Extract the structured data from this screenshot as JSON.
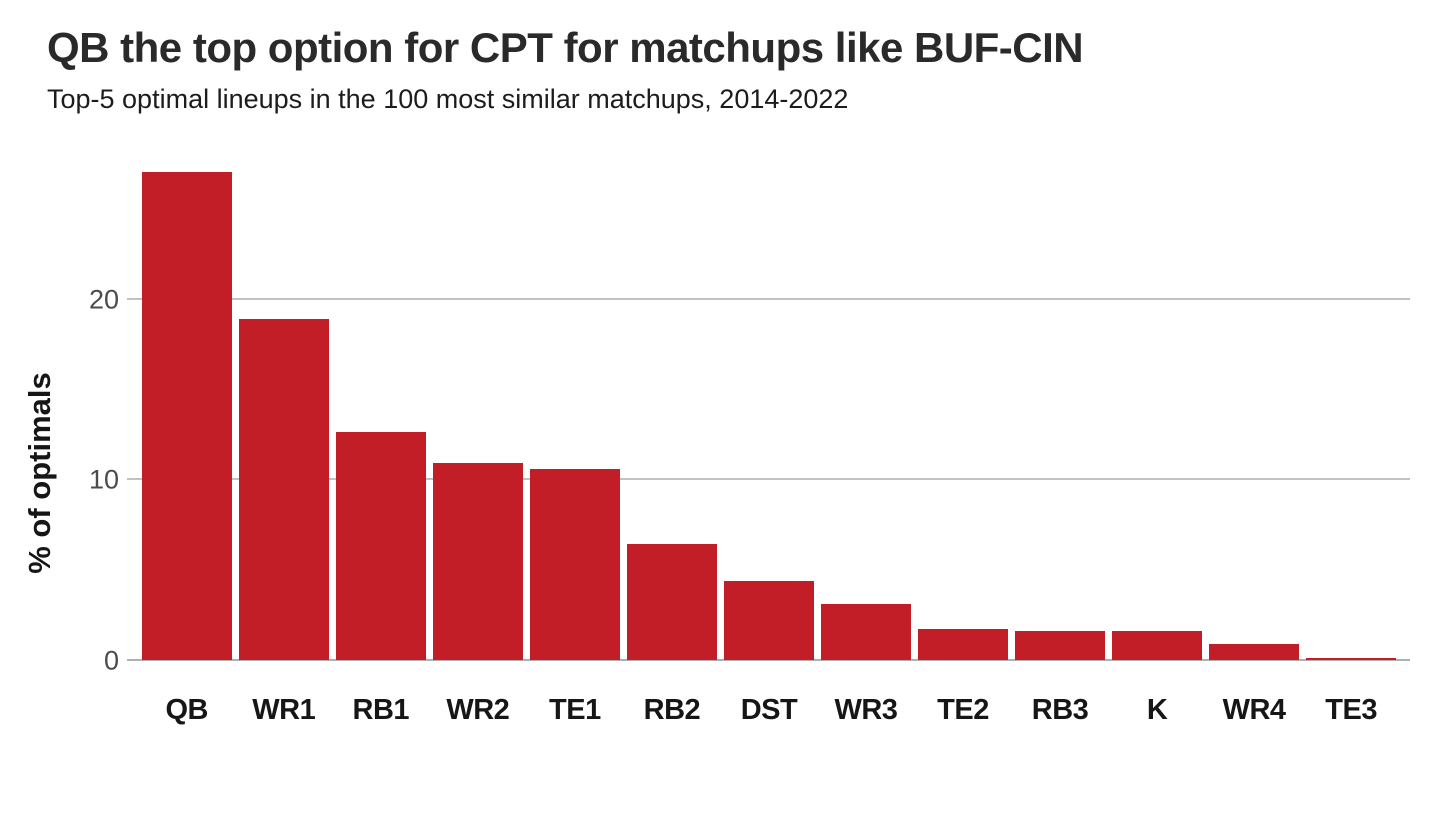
{
  "chart_data": {
    "type": "bar",
    "title": "QB the top option for CPT for matchups like BUF-CIN",
    "subtitle": "Top-5 optimal lineups in the 100 most similar matchups, 2014-2022",
    "ylabel": "% of optimals",
    "xlabel": "",
    "categories": [
      "QB",
      "WR1",
      "RB1",
      "WR2",
      "TE1",
      "RB2",
      "DST",
      "WR3",
      "TE2",
      "RB3",
      "K",
      "WR4",
      "TE3"
    ],
    "values": [
      27.0,
      18.9,
      12.6,
      10.9,
      10.6,
      6.4,
      4.4,
      3.1,
      1.7,
      1.6,
      1.6,
      0.9,
      0.1
    ],
    "yticks": [
      0,
      10,
      20
    ],
    "ylim": [
      0,
      28.35
    ],
    "grid": "horizontal",
    "legend": "none",
    "bar_color": "#c21e27",
    "gridline_color": "#c2c2c2",
    "baseline_color": "#b0b0b0",
    "title_color": "#2a2a2a",
    "tick_label_color": "#4b4b4b"
  }
}
